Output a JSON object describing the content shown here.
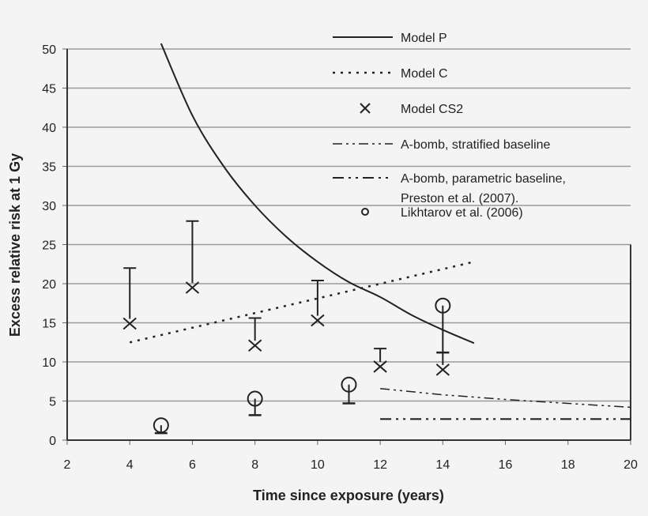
{
  "chart_data": {
    "type": "line",
    "title": "",
    "xlabel": "Time since exposure (years)",
    "ylabel": "Excess relative risk at 1 Gy",
    "xlim": [
      2,
      20
    ],
    "ylim": [
      0,
      50
    ],
    "xticks": [
      2,
      4,
      6,
      8,
      10,
      12,
      14,
      16,
      18,
      20
    ],
    "yticks": [
      0,
      5,
      10,
      15,
      20,
      25,
      30,
      35,
      40,
      45,
      50
    ],
    "grid": true,
    "legend_position": "top-right",
    "series": [
      {
        "name": "Model P",
        "style": "solid",
        "x": [
          5,
          6,
          7,
          8,
          9,
          10,
          11,
          12,
          13,
          14,
          15
        ],
        "y": [
          50.7,
          41.5,
          35,
          30,
          26,
          22.8,
          20.2,
          18.3,
          16,
          14.1,
          12.4
        ]
      },
      {
        "name": "Model C",
        "style": "dotted",
        "x": [
          4,
          15
        ],
        "y": [
          12.5,
          22.8
        ]
      },
      {
        "name": "Model CS2",
        "style": "x-marker",
        "x": [
          4,
          6,
          8,
          10,
          12,
          14
        ],
        "y": [
          14.9,
          19.5,
          12.1,
          15.3,
          9.4,
          9.0
        ],
        "error_upper": [
          22,
          28,
          15.6,
          20.4,
          11.7,
          11.2
        ]
      },
      {
        "name": "A-bomb, stratified baseline",
        "style": "dash-dot",
        "x": [
          12,
          14,
          16,
          18,
          20
        ],
        "y": [
          6.6,
          5.8,
          5.2,
          4.7,
          4.2
        ]
      },
      {
        "name": "A-bomb, parametric baseline, Preston et al. (2007).",
        "name_lines": [
          "A-bomb, parametric baseline,",
          "Preston et al. (2007)."
        ],
        "style": "dash-dot-dot",
        "x": [
          12,
          20
        ],
        "y": [
          2.7,
          2.7
        ]
      },
      {
        "name": "Likhtarov et al. (2006)",
        "style": "circle-marker",
        "x": [
          5,
          8,
          11,
          14
        ],
        "y": [
          1.9,
          5.3,
          7.1,
          17.2
        ],
        "error_lower": [
          0.9,
          3.2,
          4.7,
          11.2
        ]
      }
    ]
  }
}
